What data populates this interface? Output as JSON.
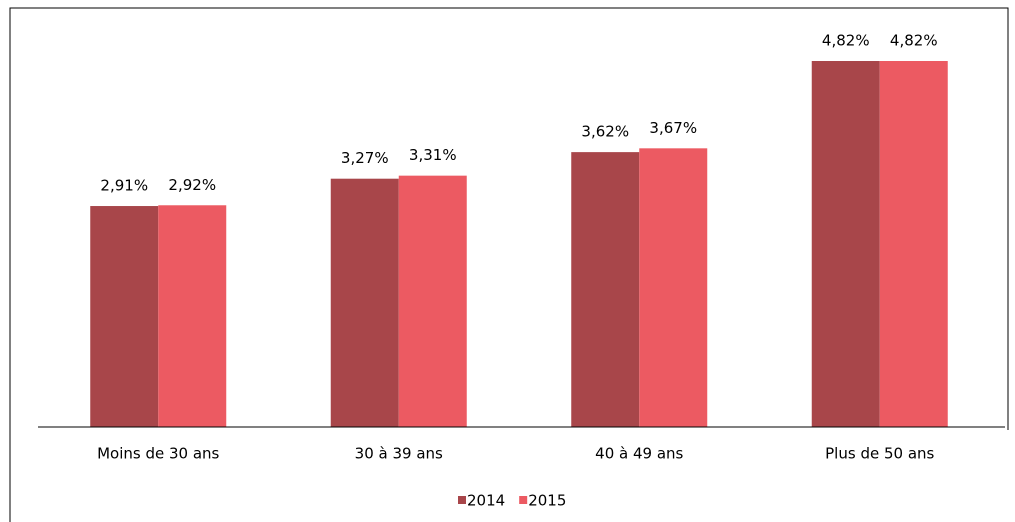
{
  "chart_data": {
    "type": "bar",
    "categories": [
      "Moins de 30 ans",
      "30 à 39 ans",
      "40 à 49 ans",
      "Plus de 50 ans"
    ],
    "series": [
      {
        "name": "2014",
        "color": "#a8464a",
        "values": [
          2.91,
          3.27,
          3.62,
          4.82
        ],
        "value_labels": [
          "2,91%",
          "3,27%",
          "3,62%",
          "4,82%"
        ]
      },
      {
        "name": "2015",
        "color": "#ec5a62",
        "values": [
          2.92,
          3.31,
          3.67,
          4.82
        ],
        "value_labels": [
          "2,92%",
          "3,31%",
          "3,67%",
          "4,82%"
        ]
      }
    ],
    "legend": "bottom"
  }
}
